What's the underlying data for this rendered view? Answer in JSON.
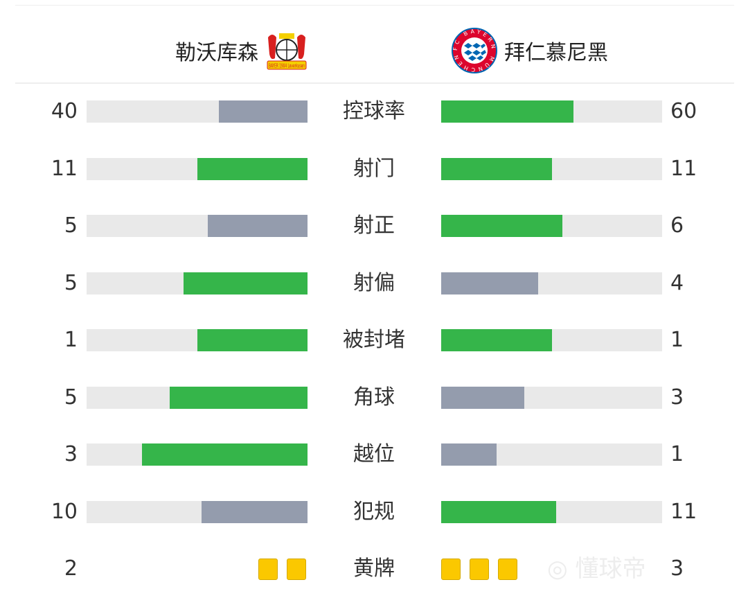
{
  "header": {
    "home_team": "勒沃库森",
    "away_team": "拜仁慕尼黑",
    "home_logo_text": "BAYER 1904 Leverkusen",
    "away_logo_text": "FC BAYERN MÜNCHEN"
  },
  "colors": {
    "leader": "#35b54a",
    "trailer": "#949cad",
    "track": "#e9e9e9",
    "card": "#fbc800"
  },
  "stats": [
    {
      "label": "控球率",
      "home": "40",
      "away": "60",
      "home_fraction": 0.4,
      "away_fraction": 0.6
    },
    {
      "label": "射门",
      "home": "11",
      "away": "11",
      "home_fraction": 0.5,
      "away_fraction": 0.5
    },
    {
      "label": "射正",
      "home": "5",
      "away": "6",
      "home_fraction": 0.45,
      "away_fraction": 0.55
    },
    {
      "label": "射偏",
      "home": "5",
      "away": "4",
      "home_fraction": 0.56,
      "away_fraction": 0.44
    },
    {
      "label": "被封堵",
      "home": "1",
      "away": "1",
      "home_fraction": 0.5,
      "away_fraction": 0.5
    },
    {
      "label": "角球",
      "home": "5",
      "away": "3",
      "home_fraction": 0.625,
      "away_fraction": 0.375
    },
    {
      "label": "越位",
      "home": "3",
      "away": "1",
      "home_fraction": 0.75,
      "away_fraction": 0.25
    },
    {
      "label": "犯规",
      "home": "10",
      "away": "11",
      "home_fraction": 0.48,
      "away_fraction": 0.52
    }
  ],
  "yellow_cards": {
    "label": "黄牌",
    "home": "2",
    "away": "3"
  },
  "watermark": "懂球帝"
}
